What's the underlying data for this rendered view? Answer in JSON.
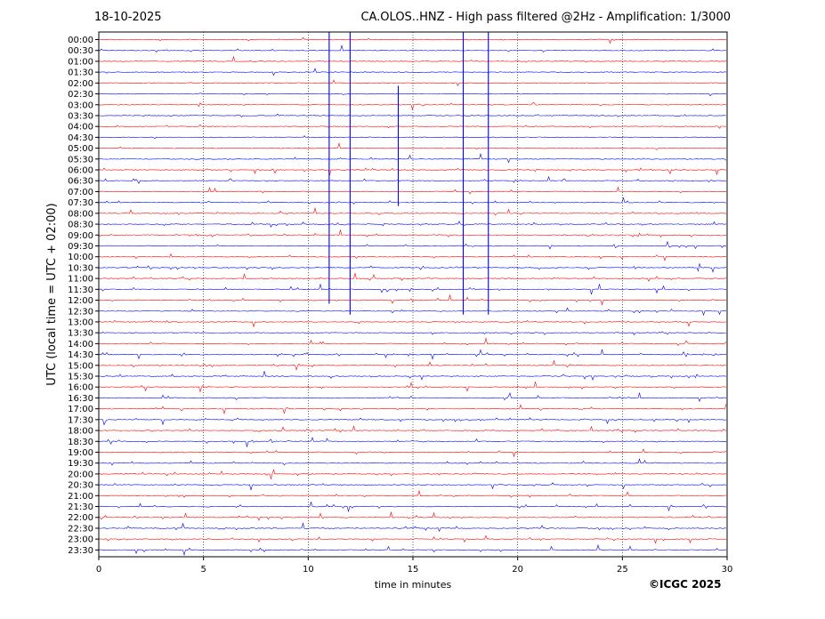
{
  "header": {
    "date": "18-10-2025",
    "station_title": "CA.OLOS..HNZ - High pass filtered @2Hz - Amplification: 1/3000"
  },
  "footer": {
    "credit": "©ICGC 2025"
  },
  "colors": {
    "trace_a": "#ff0000",
    "trace_b": "#0000ff",
    "grid": "#000000"
  },
  "chart_data": {
    "type": "line",
    "title": "CA.OLOS..HNZ - High pass filtered @2Hz - Amplification: 1/3000",
    "xlabel": "time in minutes",
    "ylabel": "UTC (local time = UTC + 02:00)",
    "xlim": [
      0,
      30
    ],
    "x_ticks": [
      0,
      5,
      10,
      15,
      20,
      25,
      30
    ],
    "grid": "vertical dotted lines at each 5 minutes",
    "rows": [
      "00:00",
      "00:30",
      "01:00",
      "01:30",
      "02:00",
      "02:30",
      "03:00",
      "03:30",
      "04:00",
      "04:30",
      "05:00",
      "05:30",
      "06:00",
      "06:30",
      "07:00",
      "07:30",
      "08:00",
      "08:30",
      "09:00",
      "09:30",
      "10:00",
      "10:30",
      "11:00",
      "11:30",
      "12:00",
      "12:30",
      "13:00",
      "13:30",
      "14:00",
      "14:30",
      "15:00",
      "15:30",
      "16:00",
      "16:30",
      "17:00",
      "17:30",
      "18:00",
      "18:30",
      "19:00",
      "19:30",
      "20:00",
      "20:30",
      "21:00",
      "21:30",
      "22:00",
      "22:30",
      "23:00",
      "23:30"
    ],
    "row_colors": [
      "red",
      "blue",
      "red",
      "blue",
      "red",
      "blue",
      "red",
      "blue",
      "red",
      "blue",
      "red",
      "blue",
      "red",
      "blue",
      "red",
      "blue",
      "red",
      "blue",
      "red",
      "blue",
      "red",
      "blue",
      "red",
      "blue",
      "red",
      "blue",
      "red",
      "blue",
      "red",
      "blue",
      "red",
      "blue",
      "red",
      "blue",
      "red",
      "blue",
      "red",
      "blue",
      "red",
      "blue",
      "red",
      "blue",
      "red",
      "blue",
      "red",
      "blue",
      "red",
      "blue"
    ],
    "large_events": [
      {
        "minute": 11.0,
        "from_row": "00:00",
        "to_row": "12:00"
      },
      {
        "minute": 12.0,
        "from_row": "00:00",
        "to_row": "12:30"
      },
      {
        "minute": 14.3,
        "from_row": "02:30",
        "to_row": "07:30"
      },
      {
        "minute": 17.4,
        "from_row": "00:00",
        "to_row": "12:30"
      },
      {
        "minute": 18.6,
        "from_row": "00:00",
        "to_row": "12:30"
      }
    ]
  }
}
